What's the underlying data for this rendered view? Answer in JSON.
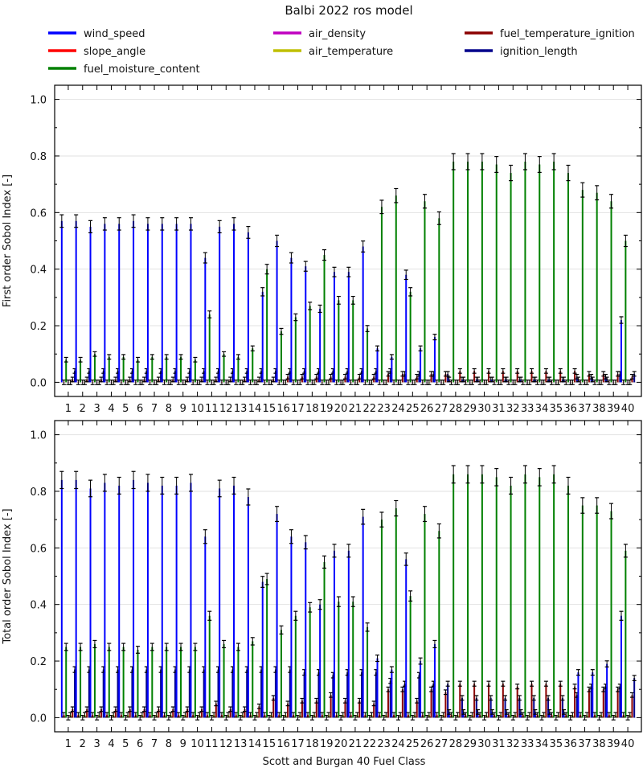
{
  "figure": {
    "title": "Balbi 2022 ros model",
    "xlabel": "Scott and Burgan 40 Fuel Class"
  },
  "legend": {
    "placement": "top",
    "entries": [
      {
        "name": "wind_speed",
        "color": "#0000ff"
      },
      {
        "name": "slope_angle",
        "color": "#ff0000"
      },
      {
        "name": "fuel_moisture_content",
        "color": "#008000"
      },
      {
        "name": "air_density",
        "color": "#c000c0"
      },
      {
        "name": "air_temperature",
        "color": "#bfbf00"
      },
      {
        "name": "fuel_temperature_ignition",
        "color": "#8b0000"
      },
      {
        "name": "ignition_length",
        "color": "#00008b"
      }
    ]
  },
  "chart_data": [
    {
      "type": "bar",
      "panel": "first-order",
      "ylabel": "First order Sobol Index [-]",
      "ylim": [
        -0.05,
        1.05
      ],
      "yticks": [
        "0.0",
        "0.2",
        "0.4",
        "0.6",
        "0.8",
        "1.0"
      ],
      "grid": "horizontal",
      "categories": [
        "1",
        "2",
        "3",
        "4",
        "5",
        "6",
        "7",
        "8",
        "9",
        "10",
        "11",
        "12",
        "13",
        "14",
        "15",
        "16",
        "17",
        "18",
        "19",
        "20",
        "21",
        "22",
        "23",
        "24",
        "25",
        "26",
        "27",
        "28",
        "29",
        "30",
        "31",
        "32",
        "33",
        "34",
        "35",
        "36",
        "37",
        "38",
        "39",
        "40"
      ],
      "series": [
        {
          "name": "wind_speed",
          "values": [
            0.57,
            0.57,
            0.55,
            0.56,
            0.56,
            0.57,
            0.56,
            0.56,
            0.56,
            0.56,
            0.44,
            0.55,
            0.56,
            0.53,
            0.32,
            0.5,
            0.44,
            0.41,
            0.26,
            0.39,
            0.39,
            0.48,
            0.12,
            0.09,
            0.38,
            0.12,
            0.16,
            0.01,
            0.01,
            0.01,
            0.01,
            0.01,
            0.01,
            0.01,
            0.01,
            0.01,
            0.01,
            0.01,
            0.01,
            0.22
          ]
        },
        {
          "name": "slope_angle",
          "values": [
            0,
            0,
            0,
            0,
            0,
            0,
            0,
            0,
            0,
            0,
            0,
            0,
            0,
            0,
            0,
            0,
            0,
            0,
            0,
            0,
            0,
            0,
            0,
            0,
            0,
            0,
            0,
            0,
            0,
            0,
            0,
            0,
            0,
            0,
            0,
            0,
            0,
            0,
            0,
            0
          ]
        },
        {
          "name": "fuel_moisture_content",
          "values": [
            0.08,
            0.08,
            0.1,
            0.09,
            0.09,
            0.08,
            0.09,
            0.09,
            0.09,
            0.08,
            0.24,
            0.1,
            0.09,
            0.12,
            0.4,
            0.18,
            0.23,
            0.27,
            0.45,
            0.29,
            0.29,
            0.19,
            0.62,
            0.66,
            0.32,
            0.64,
            0.58,
            0.78,
            0.78,
            0.78,
            0.77,
            0.74,
            0.78,
            0.77,
            0.78,
            0.74,
            0.68,
            0.67,
            0.64,
            0.5
          ]
        },
        {
          "name": "air_density",
          "values": [
            0,
            0,
            0,
            0,
            0,
            0,
            0,
            0,
            0,
            0,
            0,
            0,
            0,
            0,
            0,
            0,
            0,
            0,
            0,
            0,
            0,
            0,
            0,
            0,
            0,
            0,
            0,
            0,
            0,
            0,
            0,
            0,
            0,
            0,
            0,
            0,
            0,
            0,
            0,
            0
          ]
        },
        {
          "name": "air_temperature",
          "values": [
            0,
            0,
            0,
            0,
            0,
            0,
            0,
            0,
            0,
            0,
            0,
            0,
            0,
            0,
            0,
            0,
            0,
            0,
            0,
            0,
            0,
            0,
            0,
            0,
            0,
            0,
            0,
            0,
            0,
            0,
            0,
            0,
            0,
            0,
            0,
            0,
            0,
            0,
            0,
            0
          ]
        },
        {
          "name": "fuel_temperature_ignition",
          "values": [
            0.01,
            0.01,
            0.01,
            0.01,
            0.01,
            0.01,
            0.01,
            0.01,
            0.01,
            0.01,
            0.01,
            0.01,
            0.01,
            0.01,
            0.01,
            0.02,
            0.02,
            0.02,
            0.02,
            0.02,
            0.02,
            0.02,
            0.03,
            0.03,
            0.02,
            0.03,
            0.03,
            0.04,
            0.04,
            0.04,
            0.04,
            0.04,
            0.04,
            0.04,
            0.04,
            0.04,
            0.03,
            0.03,
            0.03,
            0.02
          ]
        },
        {
          "name": "ignition_length",
          "values": [
            0.04,
            0.04,
            0.04,
            0.04,
            0.04,
            0.04,
            0.04,
            0.04,
            0.04,
            0.04,
            0.04,
            0.04,
            0.04,
            0.04,
            0.04,
            0.04,
            0.04,
            0.04,
            0.04,
            0.04,
            0.04,
            0.04,
            0.04,
            0.03,
            0.03,
            0.03,
            0.03,
            0.01,
            0.01,
            0.01,
            0.01,
            0.01,
            0.01,
            0.01,
            0.01,
            0.02,
            0.02,
            0.02,
            0.03,
            0.03
          ]
        }
      ]
    },
    {
      "type": "bar",
      "panel": "total-order",
      "ylabel": "Total order Sobol Index [-]",
      "ylim": [
        -0.05,
        1.05
      ],
      "yticks": [
        "0.0",
        "0.2",
        "0.4",
        "0.6",
        "0.8",
        "1.0"
      ],
      "grid": "horizontal",
      "categories": [
        "1",
        "2",
        "3",
        "4",
        "5",
        "6",
        "7",
        "8",
        "9",
        "10",
        "11",
        "12",
        "13",
        "14",
        "15",
        "16",
        "17",
        "18",
        "19",
        "20",
        "21",
        "22",
        "23",
        "24",
        "25",
        "26",
        "27",
        "28",
        "29",
        "30",
        "31",
        "32",
        "33",
        "34",
        "35",
        "36",
        "37",
        "38",
        "39",
        "40"
      ],
      "series": [
        {
          "name": "wind_speed",
          "values": [
            0.84,
            0.84,
            0.81,
            0.83,
            0.82,
            0.84,
            0.83,
            0.82,
            0.82,
            0.83,
            0.64,
            0.81,
            0.82,
            0.78,
            0.48,
            0.72,
            0.64,
            0.62,
            0.4,
            0.59,
            0.59,
            0.71,
            0.21,
            0.17,
            0.56,
            0.2,
            0.26,
            0.02,
            0.02,
            0.02,
            0.02,
            0.02,
            0.02,
            0.02,
            0.02,
            0.02,
            0.16,
            0.16,
            0.19,
            0.36
          ]
        },
        {
          "name": "slope_angle",
          "values": [
            0.01,
            0.01,
            0.01,
            0.01,
            0.01,
            0.01,
            0.01,
            0.01,
            0.01,
            0.01,
            0.01,
            0.01,
            0.01,
            0.01,
            0.01,
            0.01,
            0.01,
            0.01,
            0.01,
            0.01,
            0.01,
            0.01,
            0.01,
            0.01,
            0.01,
            0.01,
            0.01,
            0.01,
            0.01,
            0.01,
            0.01,
            0.01,
            0.01,
            0.01,
            0.01,
            0.01,
            0.01,
            0.01,
            0.01,
            0.01
          ]
        },
        {
          "name": "fuel_moisture_content",
          "values": [
            0.25,
            0.25,
            0.26,
            0.25,
            0.25,
            0.24,
            0.25,
            0.25,
            0.25,
            0.25,
            0.36,
            0.26,
            0.25,
            0.27,
            0.49,
            0.31,
            0.36,
            0.39,
            0.55,
            0.41,
            0.41,
            0.32,
            0.7,
            0.74,
            0.43,
            0.72,
            0.66,
            0.86,
            0.86,
            0.86,
            0.85,
            0.82,
            0.86,
            0.85,
            0.86,
            0.82,
            0.75,
            0.75,
            0.73,
            0.59
          ]
        },
        {
          "name": "air_density",
          "values": [
            0,
            0,
            0,
            0,
            0,
            0,
            0,
            0,
            0,
            0,
            0,
            0,
            0,
            0,
            0,
            0,
            0,
            0,
            0,
            0,
            0,
            0,
            0,
            0,
            0,
            0,
            0,
            0,
            0,
            0,
            0,
            0,
            0,
            0,
            0,
            0,
            0,
            0,
            0,
            0
          ]
        },
        {
          "name": "air_temperature",
          "values": [
            0.01,
            0.01,
            0.01,
            0.01,
            0.01,
            0.01,
            0.01,
            0.01,
            0.01,
            0.01,
            0.01,
            0.01,
            0.01,
            0.01,
            0.01,
            0.01,
            0.01,
            0.01,
            0.01,
            0.01,
            0.01,
            0.01,
            0.01,
            0.01,
            0.01,
            0.01,
            0.01,
            0.01,
            0.01,
            0.01,
            0.01,
            0.01,
            0.01,
            0.01,
            0.01,
            0.01,
            0.01,
            0.01,
            0.01,
            0.01
          ]
        },
        {
          "name": "fuel_temperature_ignition",
          "values": [
            0.03,
            0.03,
            0.03,
            0.03,
            0.03,
            0.03,
            0.03,
            0.03,
            0.03,
            0.03,
            0.05,
            0.03,
            0.03,
            0.04,
            0.07,
            0.05,
            0.06,
            0.06,
            0.08,
            0.06,
            0.06,
            0.05,
            0.1,
            0.1,
            0.06,
            0.1,
            0.09,
            0.12,
            0.12,
            0.12,
            0.12,
            0.11,
            0.12,
            0.12,
            0.12,
            0.11,
            0.1,
            0.1,
            0.1,
            0.08
          ]
        },
        {
          "name": "ignition_length",
          "values": [
            0.17,
            0.17,
            0.17,
            0.17,
            0.17,
            0.17,
            0.17,
            0.17,
            0.17,
            0.17,
            0.17,
            0.17,
            0.17,
            0.17,
            0.17,
            0.17,
            0.16,
            0.16,
            0.15,
            0.16,
            0.16,
            0.16,
            0.13,
            0.12,
            0.15,
            0.12,
            0.12,
            0.07,
            0.07,
            0.07,
            0.07,
            0.07,
            0.07,
            0.07,
            0.07,
            0.08,
            0.11,
            0.11,
            0.11,
            0.14
          ]
        }
      ]
    }
  ]
}
